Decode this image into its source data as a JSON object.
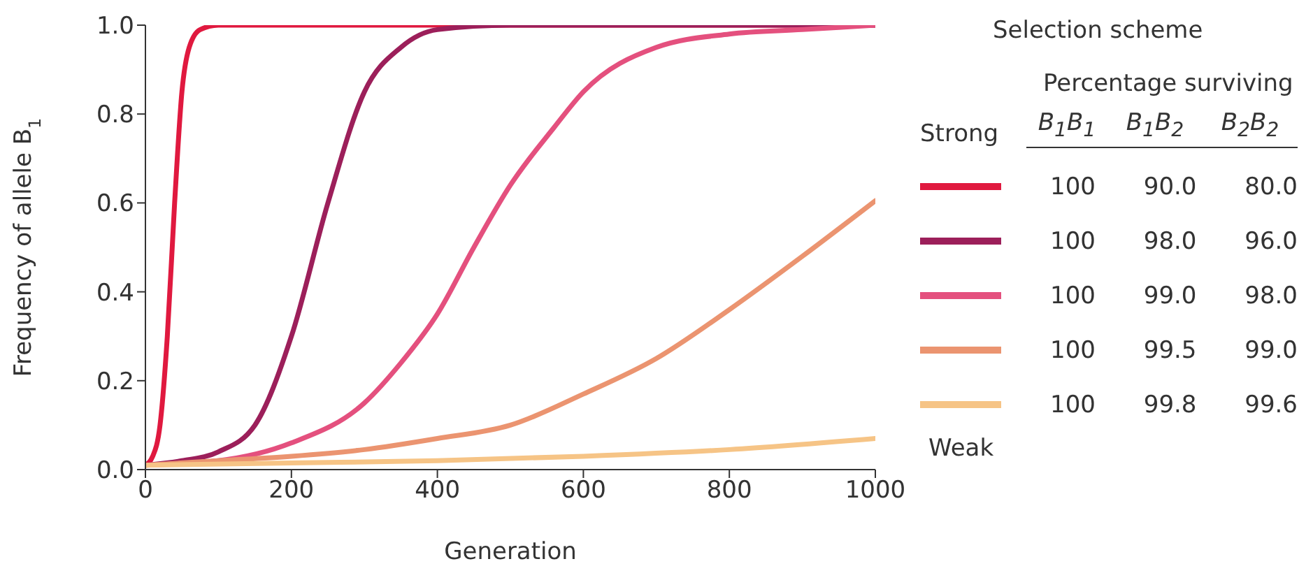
{
  "chart_data": {
    "type": "line",
    "xlabel": "Generation",
    "ylabel": "Frequency of allele B$_{1}$",
    "legend_title": "Selection scheme",
    "legend": "right",
    "xlim": [
      0,
      1000
    ],
    "xticks": [
      0,
      200,
      400,
      600,
      800,
      1000
    ],
    "ylim": [
      0,
      1
    ],
    "yticks": [
      {
        "value": 0,
        "label": "0.0"
      },
      {
        "value": 0.2,
        "label": "0.2"
      },
      {
        "value": 0.4,
        "label": "0.4"
      },
      {
        "value": 0.6,
        "label": "0.6"
      },
      {
        "value": 0.8,
        "label": "0.8"
      },
      {
        "value": 1,
        "label": "1.0"
      }
    ],
    "annotations": [
      "Percentage surviving",
      "B$_{1}$B$_{1}$",
      "B$_{1}$B$_{2}$",
      "B$_{2}$B$_{2}$",
      "Strong",
      "Weak"
    ],
    "series": [
      {
        "name": "100 90.0 80.0",
        "color": "#e0193f",
        "x": [
          0,
          10,
          20,
          30,
          40,
          50,
          60,
          75,
          100,
          1000
        ],
        "values": [
          0.01,
          0.03,
          0.1,
          0.3,
          0.6,
          0.85,
          0.95,
          0.99,
          1,
          1
        ]
      },
      {
        "name": "100 98.0 96.0",
        "color": "#9c1f5a",
        "x": [
          0,
          50,
          100,
          150,
          200,
          250,
          300,
          350,
          400,
          500,
          1000
        ],
        "values": [
          0.01,
          0.02,
          0.04,
          0.1,
          0.3,
          0.6,
          0.85,
          0.95,
          0.99,
          1,
          1
        ]
      },
      {
        "name": "100 99.0 98.0",
        "color": "#e4507e",
        "x": [
          0,
          100,
          200,
          300,
          350,
          400,
          450,
          500,
          560,
          600,
          700,
          800,
          900,
          1000
        ],
        "values": [
          0.01,
          0.02,
          0.06,
          0.15,
          0.24,
          0.35,
          0.5,
          0.64,
          0.77,
          0.85,
          0.95,
          0.98,
          0.99,
          1
        ]
      },
      {
        "name": "100 99.5 99.0",
        "color": "#eb9470",
        "x": [
          0,
          100,
          200,
          300,
          400,
          500,
          600,
          700,
          800,
          900,
          1000
        ],
        "values": [
          0.01,
          0.02,
          0.03,
          0.045,
          0.07,
          0.1,
          0.17,
          0.25,
          0.36,
          0.48,
          0.605
        ]
      },
      {
        "name": "100 99.8 99.6",
        "color": "#f6c486",
        "x": [
          0,
          200,
          400,
          600,
          800,
          1000
        ],
        "values": [
          0.01,
          0.015,
          0.02,
          0.03,
          0.045,
          0.07
        ]
      }
    ]
  }
}
